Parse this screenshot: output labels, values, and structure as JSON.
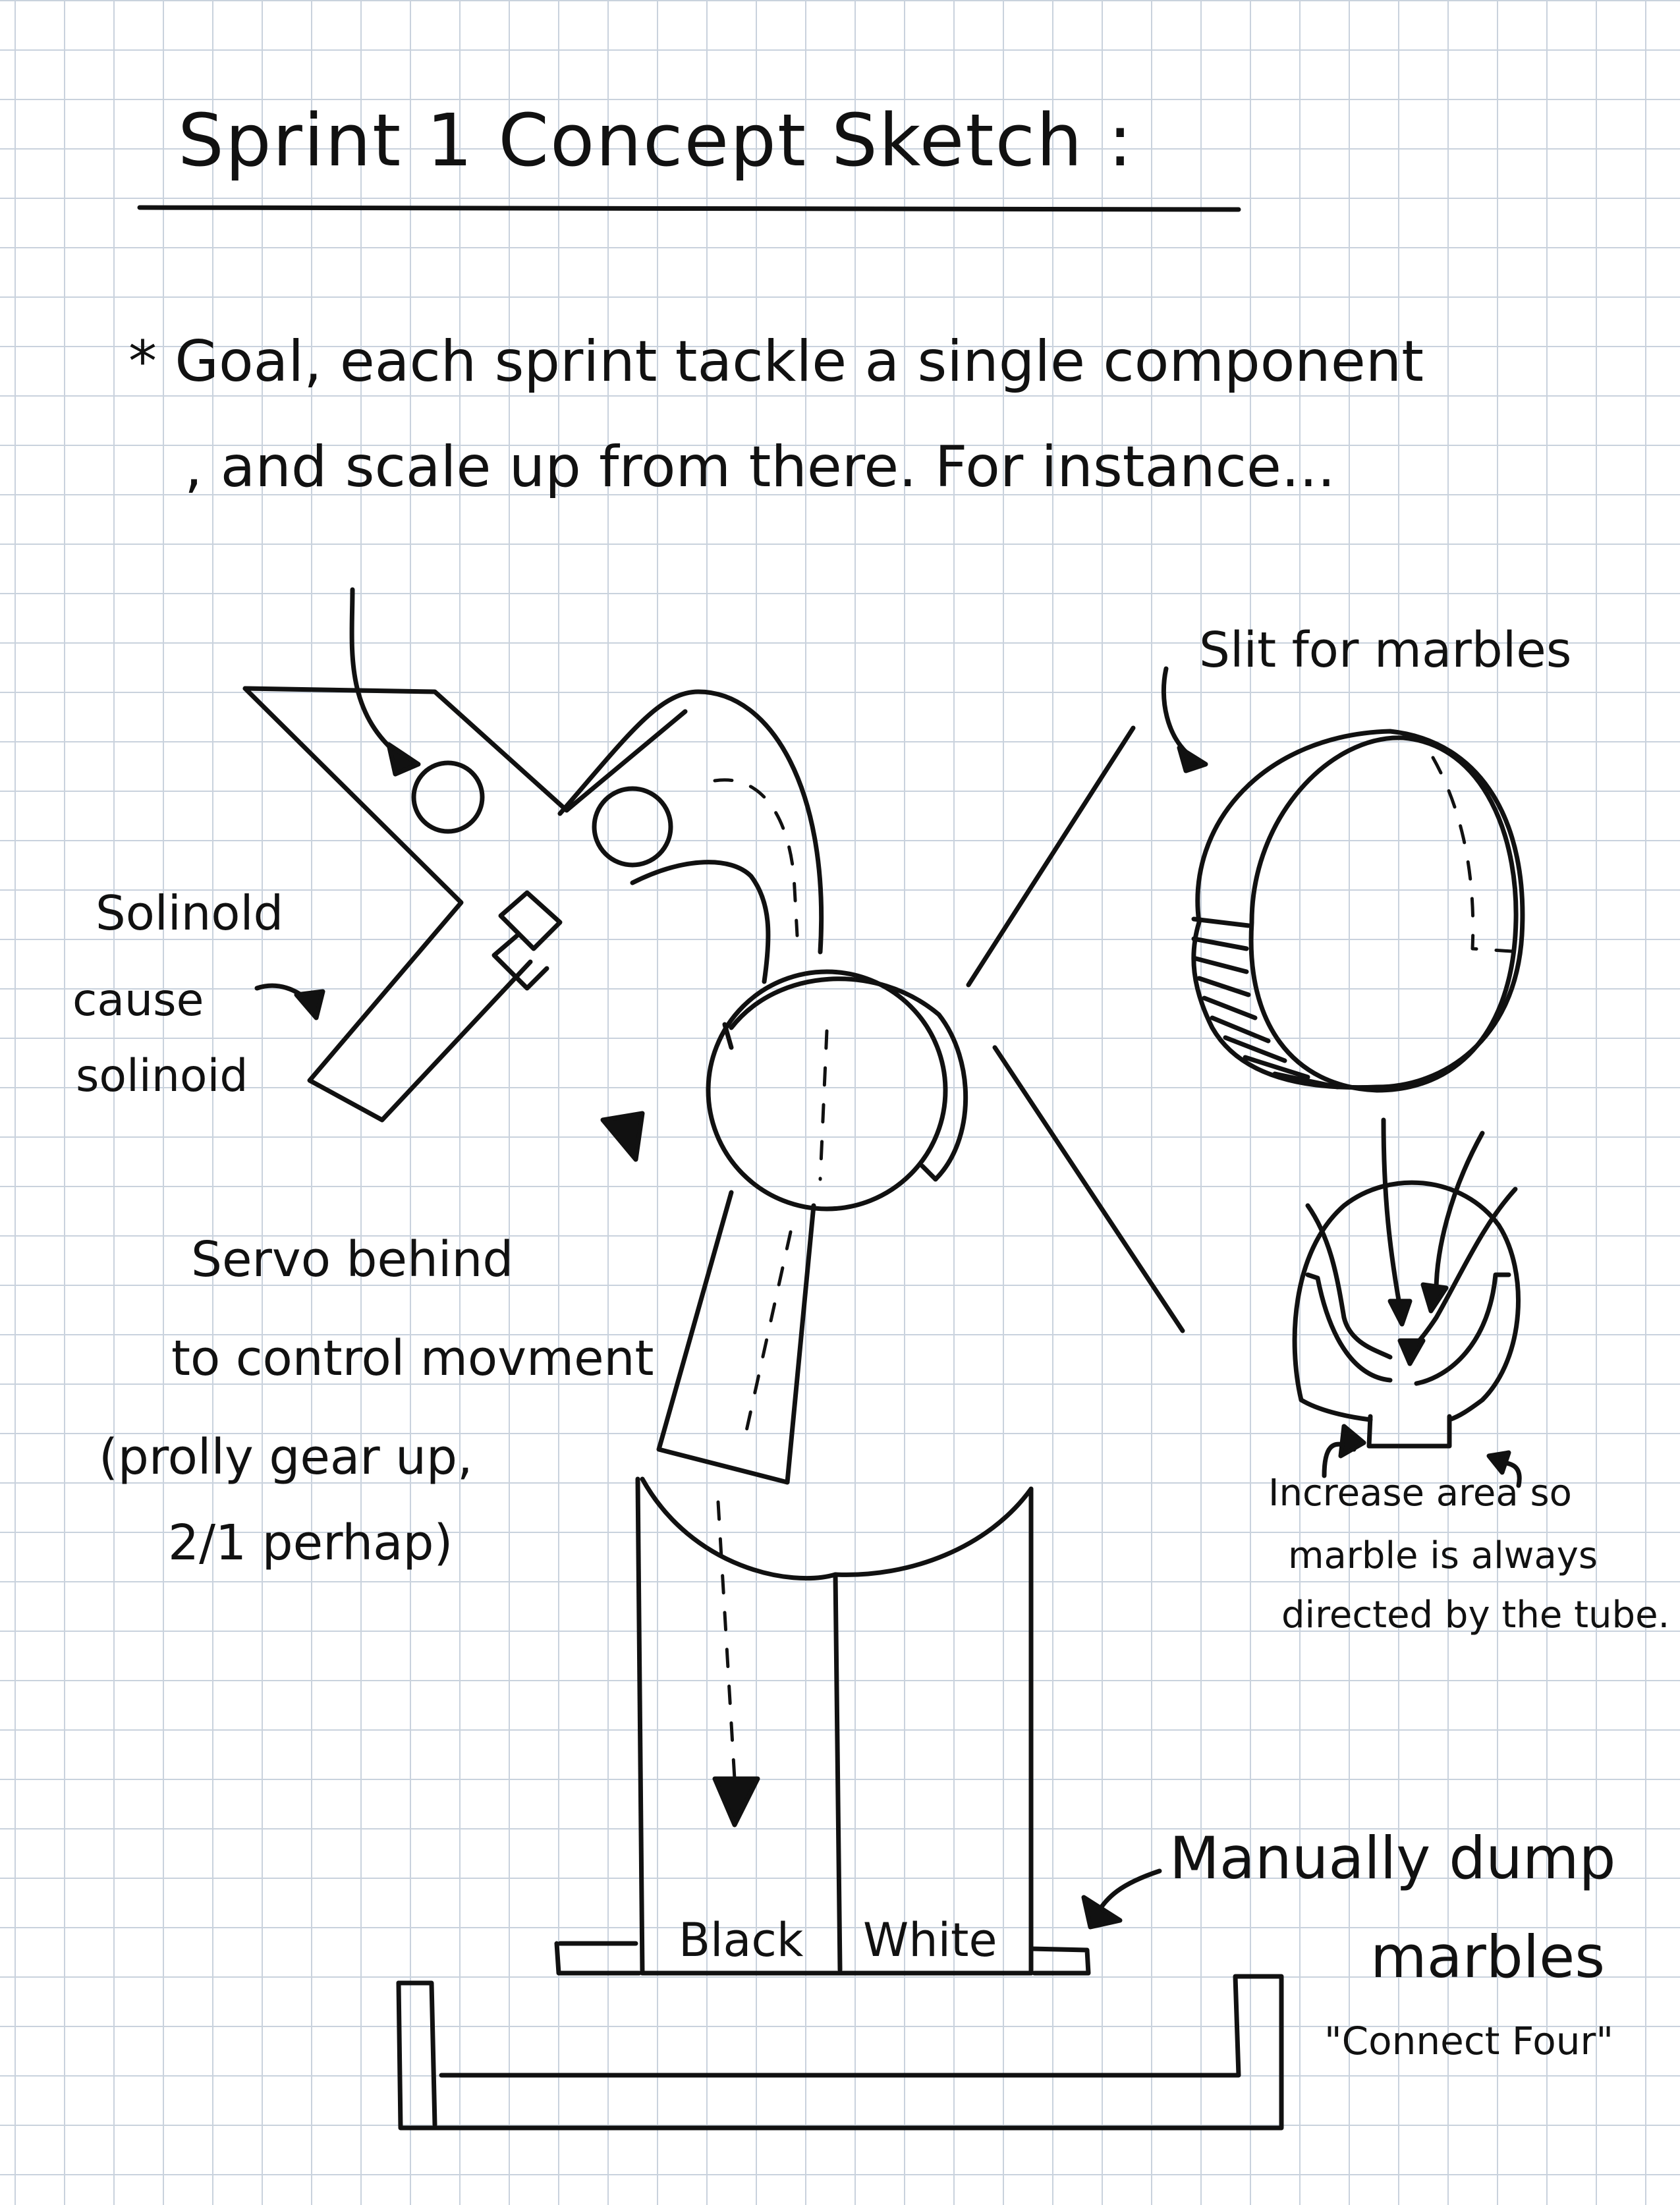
{
  "title": "Sprint 1 Concept Sketch :",
  "goal": {
    "line1": "* Goal, each sprint tackle a single component",
    "line2": ", and scale up from there. For instance..."
  },
  "labels": {
    "slit": "Slit for marbles",
    "solenoid_1": "Solinold",
    "solenoid_2": "cause",
    "solenoid_3": "solinoid",
    "servo_1": "Servo behind",
    "servo_2": "to control movment",
    "servo_3": "(prolly gear up,",
    "servo_4": "2/1 perhap)",
    "increase_1": "Increase area so",
    "increase_2": "marble is always",
    "increase_3": "directed by the tube.",
    "black": "Black",
    "white": "White",
    "manually_1": "Manually dump",
    "manually_2": "marbles",
    "connect_four": "\"Connect Four\""
  }
}
